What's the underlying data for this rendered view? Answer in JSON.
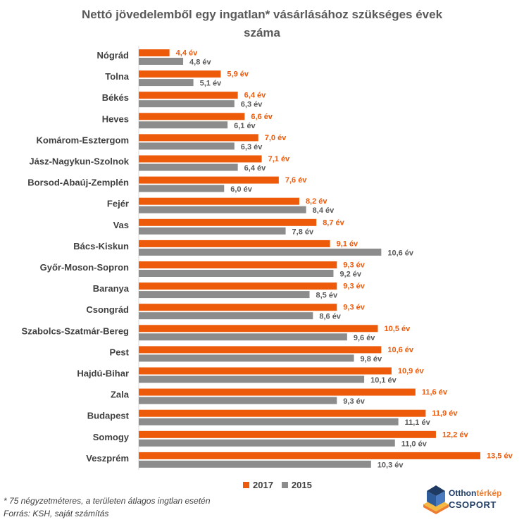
{
  "title_line1": "Nettó jövedelemből egy ingatlan* vásárlásához szükséges évek",
  "title_line2": "száma",
  "colors": {
    "series_2017": "#ED5A0A",
    "series_2015": "#8C8C8C"
  },
  "legend": {
    "label_2017": "2017",
    "label_2015": "2015"
  },
  "footnote_line1": "* 75 négyzetméteres, a területen átlagos ingtlan esetén",
  "footnote_line2": "Forrás: KSH, saját számítás",
  "logo": {
    "text_part1": "Otthon",
    "text_part2": "térkép",
    "text_line2": "CSOPORT",
    "icon": "house-logo-icon"
  },
  "chart_data": {
    "type": "bar",
    "orientation": "horizontal",
    "title": "Nettó jövedelemből egy ingatlan* vásárlásához szükséges évek száma",
    "value_suffix": " év",
    "categories": [
      "Nógrád",
      "Tolna",
      "Békés",
      "Heves",
      "Komárom-Esztergom",
      "Jász-Nagykun-Szolnok",
      "Borsod-Abaúj-Zemplén",
      "Fejér",
      "Vas",
      "Bács-Kiskun",
      "Győr-Moson-Sopron",
      "Baranya",
      "Csongrád",
      "Szabolcs-Szatmár-Bereg",
      "Pest",
      "Hajdú-Bihar",
      "Zala",
      "Budapest",
      "Somogy",
      "Veszprém"
    ],
    "series": [
      {
        "name": "2017",
        "values": [
          4.4,
          5.9,
          6.4,
          6.6,
          7.0,
          7.1,
          7.6,
          8.2,
          8.7,
          9.1,
          9.3,
          9.3,
          9.3,
          10.5,
          10.6,
          10.9,
          11.6,
          11.9,
          12.2,
          13.5
        ],
        "labels": [
          "4,4 év",
          "5,9 év",
          "6,4 év",
          "6,6 év",
          "7,0 év",
          "7,1 év",
          "7,6 év",
          "8,2 év",
          "8,7 év",
          "9,1 év",
          "9,3 év",
          "9,3 év",
          "9,3 év",
          "10,5 év",
          "10,6 év",
          "10,9 év",
          "11,6 év",
          "11,9 év",
          "12,2 év",
          "13,5 év"
        ]
      },
      {
        "name": "2015",
        "values": [
          4.8,
          5.1,
          6.3,
          6.1,
          6.3,
          6.4,
          6.0,
          8.4,
          7.8,
          10.6,
          9.2,
          8.5,
          8.6,
          9.6,
          9.8,
          10.1,
          9.3,
          11.1,
          11.0,
          10.3
        ],
        "labels": [
          "4,8 év",
          "5,1 év",
          "6,3 év",
          "6,1 év",
          "6,3 év",
          "6,4 év",
          "6,0 év",
          "8,4 év",
          "7,8 év",
          "10,6 év",
          "9,2 év",
          "8,5 év",
          "8,6 év",
          "9,6 év",
          "9,8 év",
          "10,1 év",
          "9,3 év",
          "11,1 év",
          "11,0 év",
          "10,3 év"
        ]
      }
    ],
    "xlim": [
      3.5,
      13.5
    ],
    "grid": false,
    "legend_position": "bottom"
  }
}
